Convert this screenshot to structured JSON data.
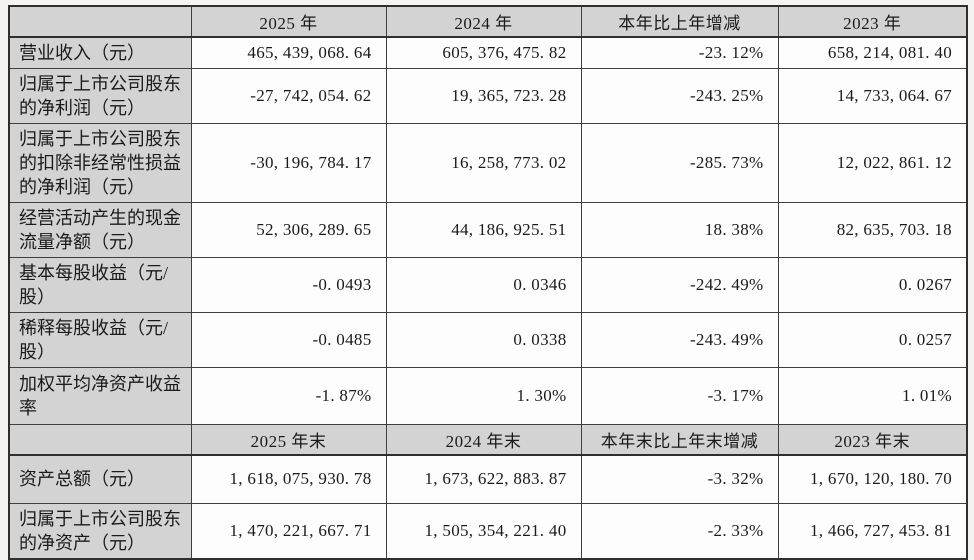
{
  "colors": {
    "header_bg": "#d3d3d3",
    "label_bg": "#d3d3d3",
    "cell_bg": "#fdfdfd",
    "border": "#3f3f3f",
    "page_bg": "#f4f3f1"
  },
  "table": {
    "header_row_1": [
      "",
      "2025 年",
      "2024 年",
      "本年比上年增减",
      "2023 年"
    ],
    "header_row_2": [
      "",
      "2025 年末",
      "2024 年末",
      "本年末比上年末增减",
      "2023 年末"
    ],
    "rows": [
      {
        "label": "营业收入（元）",
        "values": [
          "465, 439, 068. 64",
          "605, 376, 475. 82",
          "-23. 12%",
          "658, 214, 081. 40"
        ]
      },
      {
        "label": "归属于上市公司股东的净利润（元）",
        "values": [
          "-27, 742, 054. 62",
          "19, 365, 723. 28",
          "-243. 25%",
          "14, 733, 064. 67"
        ]
      },
      {
        "label": "归属于上市公司股东的扣除非经常性损益的净利润（元）",
        "values": [
          "-30, 196, 784. 17",
          "16, 258, 773. 02",
          "-285. 73%",
          "12, 022, 861. 12"
        ]
      },
      {
        "label": "经营活动产生的现金流量净额（元）",
        "values": [
          "52, 306, 289. 65",
          "44, 186, 925. 51",
          "18. 38%",
          "82, 635, 703. 18"
        ]
      },
      {
        "label": "基本每股收益（元/股）",
        "values": [
          "-0. 0493",
          "0. 0346",
          "-242. 49%",
          "0. 0267"
        ]
      },
      {
        "label": "稀释每股收益（元/股）",
        "values": [
          "-0. 0485",
          "0. 0338",
          "-243. 49%",
          "0. 0257"
        ]
      },
      {
        "label": "加权平均净资产收益率",
        "values": [
          "-1. 87%",
          "1. 30%",
          "-3. 17%",
          "1. 01%"
        ]
      },
      {
        "label": "资产总额（元）",
        "values": [
          "1, 618, 075, 930. 78",
          "1, 673, 622, 883. 87",
          "-3. 32%",
          "1, 670, 120, 180. 70"
        ]
      },
      {
        "label": "归属于上市公司股东的净资产（元）",
        "values": [
          "1, 470, 221, 667. 71",
          "1, 505, 354, 221. 40",
          "-2. 33%",
          "1, 466, 727, 453. 81"
        ]
      }
    ]
  }
}
